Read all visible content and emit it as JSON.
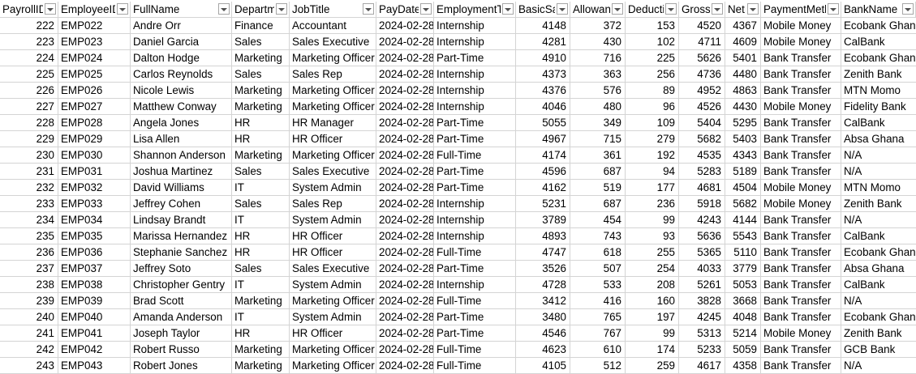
{
  "columns": [
    {
      "key": "payroll",
      "label": "PayrollID"
    },
    {
      "key": "emp",
      "label": "EmployeeID"
    },
    {
      "key": "name",
      "label": "FullName"
    },
    {
      "key": "dept",
      "label": "Department"
    },
    {
      "key": "job",
      "label": "JobTitle"
    },
    {
      "key": "date",
      "label": "PayDate"
    },
    {
      "key": "type",
      "label": "EmploymentType"
    },
    {
      "key": "basic",
      "label": "BasicSalary"
    },
    {
      "key": "allow",
      "label": "Allowances"
    },
    {
      "key": "deduct",
      "label": "Deductions"
    },
    {
      "key": "gross",
      "label": "GrossPay"
    },
    {
      "key": "net",
      "label": "NetPay"
    },
    {
      "key": "method",
      "label": "PaymentMethod"
    },
    {
      "key": "bank",
      "label": "BankName"
    }
  ],
  "rows": [
    [
      "222",
      "EMP022",
      "Andre Orr",
      "Finance",
      "Accountant",
      "2024-02-28",
      "Internship",
      "4148",
      "372",
      "153",
      "4520",
      "4367",
      "Mobile Money",
      "Ecobank Ghana"
    ],
    [
      "223",
      "EMP023",
      "Daniel Garcia",
      "Sales",
      "Sales Executive",
      "2024-02-28",
      "Internship",
      "4281",
      "430",
      "102",
      "4711",
      "4609",
      "Mobile Money",
      "CalBank"
    ],
    [
      "224",
      "EMP024",
      "Dalton Hodge",
      "Marketing",
      "Marketing Officer",
      "2024-02-28",
      "Part-Time",
      "4910",
      "716",
      "225",
      "5626",
      "5401",
      "Bank Transfer",
      "Ecobank Ghana"
    ],
    [
      "225",
      "EMP025",
      "Carlos Reynolds",
      "Sales",
      "Sales Rep",
      "2024-02-28",
      "Internship",
      "4373",
      "363",
      "256",
      "4736",
      "4480",
      "Bank Transfer",
      "Zenith Bank"
    ],
    [
      "226",
      "EMP026",
      "Nicole Lewis",
      "Marketing",
      "Marketing Officer",
      "2024-02-28",
      "Internship",
      "4376",
      "576",
      "89",
      "4952",
      "4863",
      "Bank Transfer",
      "MTN Momo"
    ],
    [
      "227",
      "EMP027",
      "Matthew Conway",
      "Marketing",
      "Marketing Officer",
      "2024-02-28",
      "Internship",
      "4046",
      "480",
      "96",
      "4526",
      "4430",
      "Mobile Money",
      "Fidelity Bank"
    ],
    [
      "228",
      "EMP028",
      "Angela Jones",
      "HR",
      "HR Manager",
      "2024-02-28",
      "Part-Time",
      "5055",
      "349",
      "109",
      "5404",
      "5295",
      "Bank Transfer",
      "CalBank"
    ],
    [
      "229",
      "EMP029",
      "Lisa Allen",
      "HR",
      "HR Officer",
      "2024-02-28",
      "Part-Time",
      "4967",
      "715",
      "279",
      "5682",
      "5403",
      "Bank Transfer",
      "Absa Ghana"
    ],
    [
      "230",
      "EMP030",
      "Shannon Anderson",
      "Marketing",
      "Marketing Officer",
      "2024-02-28",
      "Full-Time",
      "4174",
      "361",
      "192",
      "4535",
      "4343",
      "Bank Transfer",
      "N/A"
    ],
    [
      "231",
      "EMP031",
      "Joshua Martinez",
      "Sales",
      "Sales Executive",
      "2024-02-28",
      "Part-Time",
      "4596",
      "687",
      "94",
      "5283",
      "5189",
      "Bank Transfer",
      "N/A"
    ],
    [
      "232",
      "EMP032",
      "David Williams",
      "IT",
      "System Admin",
      "2024-02-28",
      "Part-Time",
      "4162",
      "519",
      "177",
      "4681",
      "4504",
      "Mobile Money",
      "MTN Momo"
    ],
    [
      "233",
      "EMP033",
      "Jeffrey Cohen",
      "Sales",
      "Sales Rep",
      "2024-02-28",
      "Internship",
      "5231",
      "687",
      "236",
      "5918",
      "5682",
      "Mobile Money",
      "Zenith Bank"
    ],
    [
      "234",
      "EMP034",
      "Lindsay Brandt",
      "IT",
      "System Admin",
      "2024-02-28",
      "Internship",
      "3789",
      "454",
      "99",
      "4243",
      "4144",
      "Bank Transfer",
      "N/A"
    ],
    [
      "235",
      "EMP035",
      "Marissa Hernandez",
      "HR",
      "HR Officer",
      "2024-02-28",
      "Internship",
      "4893",
      "743",
      "93",
      "5636",
      "5543",
      "Bank Transfer",
      "CalBank"
    ],
    [
      "236",
      "EMP036",
      "Stephanie Sanchez",
      "HR",
      "HR Officer",
      "2024-02-28",
      "Full-Time",
      "4747",
      "618",
      "255",
      "5365",
      "5110",
      "Bank Transfer",
      "Ecobank Ghana"
    ],
    [
      "237",
      "EMP037",
      "Jeffrey Soto",
      "Sales",
      "Sales Executive",
      "2024-02-28",
      "Part-Time",
      "3526",
      "507",
      "254",
      "4033",
      "3779",
      "Bank Transfer",
      "Absa Ghana"
    ],
    [
      "238",
      "EMP038",
      "Christopher Gentry",
      "IT",
      "System Admin",
      "2024-02-28",
      "Internship",
      "4728",
      "533",
      "208",
      "5261",
      "5053",
      "Bank Transfer",
      "CalBank"
    ],
    [
      "239",
      "EMP039",
      "Brad Scott",
      "Marketing",
      "Marketing Officer",
      "2024-02-28",
      "Full-Time",
      "3412",
      "416",
      "160",
      "3828",
      "3668",
      "Bank Transfer",
      "N/A"
    ],
    [
      "240",
      "EMP040",
      "Amanda Anderson",
      "IT",
      "System Admin",
      "2024-02-28",
      "Part-Time",
      "3480",
      "765",
      "197",
      "4245",
      "4048",
      "Bank Transfer",
      "Ecobank Ghana"
    ],
    [
      "241",
      "EMP041",
      "Joseph Taylor",
      "HR",
      "HR Officer",
      "2024-02-28",
      "Part-Time",
      "4546",
      "767",
      "99",
      "5313",
      "5214",
      "Mobile Money",
      "Zenith Bank"
    ],
    [
      "242",
      "EMP042",
      "Robert Russo",
      "Marketing",
      "Marketing Officer",
      "2024-02-28",
      "Full-Time",
      "4623",
      "610",
      "174",
      "5233",
      "5059",
      "Bank Transfer",
      "GCB Bank"
    ],
    [
      "243",
      "EMP043",
      "Robert Jones",
      "Marketing",
      "Marketing Officer",
      "2024-02-28",
      "Full-Time",
      "4105",
      "512",
      "259",
      "4617",
      "4358",
      "Bank Transfer",
      "N/A"
    ]
  ]
}
